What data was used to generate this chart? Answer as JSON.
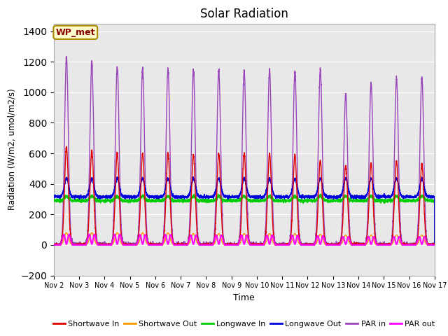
{
  "title": "Solar Radiation",
  "ylabel": "Radiation (W/m2, umol/m2/s)",
  "xlabel": "Time",
  "n_days": 15,
  "ylim": [
    -200,
    1450
  ],
  "yticks": [
    -200,
    0,
    200,
    400,
    600,
    800,
    1000,
    1200,
    1400
  ],
  "background_color": "#e8e8e8",
  "fig_color": "#ffffff",
  "annotation_text": "WP_met",
  "annotation_bg": "#ffffcc",
  "annotation_border": "#aa8800",
  "series": {
    "shortwave_in": {
      "color": "#dd0000",
      "label": "Shortwave In",
      "lw": 1.0
    },
    "shortwave_out": {
      "color": "#ff9900",
      "label": "Shortwave Out",
      "lw": 1.0
    },
    "longwave_in": {
      "color": "#00cc00",
      "label": "Longwave In",
      "lw": 1.0
    },
    "longwave_out": {
      "color": "#0000dd",
      "label": "Longwave Out",
      "lw": 1.0
    },
    "par_in": {
      "color": "#9944bb",
      "label": "PAR in",
      "lw": 1.0
    },
    "par_out": {
      "color": "#ff00ff",
      "label": "PAR out",
      "lw": 1.5
    }
  },
  "xtick_labels": [
    "Nov 2",
    "Nov 3",
    "Nov 4",
    "Nov 5",
    "Nov 6",
    "Nov 7",
    "Nov 8",
    "Nov 9",
    "Nov 10",
    "Nov 11",
    "Nov 12",
    "Nov 13",
    "Nov 14",
    "Nov 15",
    "Nov 16",
    "Nov 17"
  ],
  "xtick_positions": [
    0,
    1,
    2,
    3,
    4,
    5,
    6,
    7,
    8,
    9,
    10,
    11,
    12,
    13,
    14,
    15
  ],
  "par_in_peaks": [
    1230,
    1200,
    1170,
    1155,
    1155,
    1145,
    1145,
    1145,
    1145,
    1140,
    1150,
    990,
    1060,
    1090,
    1100
  ],
  "sw_in_peaks": [
    640,
    620,
    600,
    600,
    600,
    590,
    600,
    600,
    600,
    590,
    550,
    520,
    530,
    550,
    530
  ],
  "sw_out_peaks": [
    80,
    80,
    80,
    80,
    80,
    75,
    75,
    75,
    75,
    75,
    70,
    65,
    65,
    65,
    65
  ],
  "par_out_peaks": [
    70,
    70,
    70,
    68,
    68,
    65,
    65,
    65,
    65,
    63,
    60,
    55,
    55,
    55,
    55
  ],
  "lw_in_base": 290,
  "lw_out_base": 315
}
